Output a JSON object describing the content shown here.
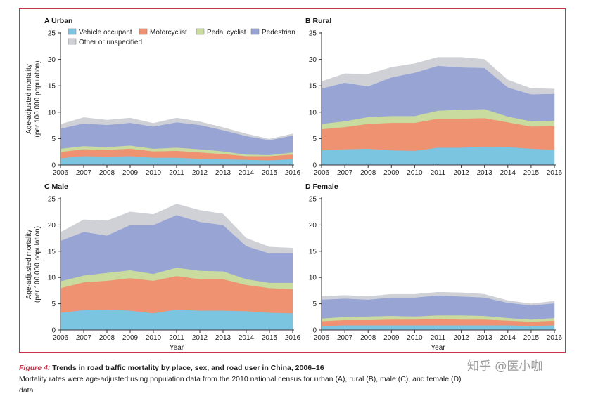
{
  "caption": {
    "figure_label": "Figure 4:",
    "title": " Trends in road traffic mortality by place, sex, and road user in China, 2006–16",
    "note": "Mortality rates were age-adjusted using population data from the 2010 national census for urban (A), rural (B), male (C), and female (D) data."
  },
  "watermark": "知乎 @医小咖",
  "colors": {
    "vehicle": "#7cc5e0",
    "motorcyclist": "#ee9272",
    "pedal": "#c9db9e",
    "pedestrian": "#98a5d4",
    "other": "#cfd1d7"
  },
  "chart_data": [
    {
      "type": "area",
      "stacked": true,
      "panel": "A",
      "title": "Urban",
      "xlabel": "",
      "ylabel_line1": "Age-adjusted mortality",
      "ylabel_line2": "(per 100 000 population)",
      "x": [
        2006,
        2007,
        2008,
        2009,
        2010,
        2011,
        2012,
        2013,
        2014,
        2015,
        2016
      ],
      "ylim": [
        0,
        25
      ],
      "yticks": [
        0,
        5,
        10,
        15,
        20,
        25
      ],
      "legend": {
        "row1": [
          "Vehicle occupant",
          "Motorcyclist",
          "Pedal cyclist",
          "Pedestrian"
        ],
        "row2": [
          "Other or unspecified"
        ]
      },
      "series": [
        {
          "name": "Vehicle occupant",
          "values": [
            1.3,
            1.7,
            1.6,
            1.7,
            1.4,
            1.4,
            1.2,
            1.1,
            1.0,
            0.9,
            1.1
          ]
        },
        {
          "name": "Motorcyclist",
          "values": [
            1.2,
            1.3,
            1.3,
            1.4,
            1.2,
            1.3,
            1.2,
            1.0,
            0.7,
            0.8,
            0.9
          ]
        },
        {
          "name": "Pedal cyclist",
          "values": [
            0.6,
            0.6,
            0.5,
            0.6,
            0.5,
            0.6,
            0.6,
            0.5,
            0.3,
            0.2,
            0.4
          ]
        },
        {
          "name": "Pedestrian",
          "values": [
            3.8,
            4.3,
            4.2,
            4.3,
            4.2,
            4.8,
            4.6,
            4.0,
            3.5,
            2.8,
            3.2
          ]
        },
        {
          "name": "Other or unspecified",
          "values": [
            0.8,
            1.1,
            0.9,
            0.9,
            0.6,
            0.8,
            0.6,
            0.5,
            0.4,
            0.2,
            0.3
          ]
        }
      ]
    },
    {
      "type": "area",
      "stacked": true,
      "panel": "B",
      "title": "Rural",
      "xlabel": "",
      "x": [
        2006,
        2007,
        2008,
        2009,
        2010,
        2011,
        2012,
        2013,
        2014,
        2015,
        2016
      ],
      "ylim": [
        0,
        25
      ],
      "yticks": [
        0,
        5,
        10,
        15,
        20,
        25
      ],
      "series": [
        {
          "name": "Vehicle occupant",
          "values": [
            2.8,
            3.0,
            3.1,
            2.8,
            2.7,
            3.3,
            3.3,
            3.5,
            3.4,
            3.1,
            2.9
          ]
        },
        {
          "name": "Motorcyclist",
          "values": [
            4.0,
            4.2,
            4.7,
            5.2,
            5.3,
            5.5,
            5.5,
            5.4,
            4.7,
            4.2,
            4.5
          ]
        },
        {
          "name": "Pedal cyclist",
          "values": [
            1.0,
            1.1,
            1.3,
            1.3,
            1.3,
            1.5,
            1.7,
            1.7,
            1.1,
            1.0,
            1.0
          ]
        },
        {
          "name": "Pedestrian",
          "values": [
            6.7,
            7.3,
            5.8,
            7.3,
            8.2,
            8.5,
            8.0,
            7.8,
            5.5,
            5.1,
            5.1
          ]
        },
        {
          "name": "Other or unspecified",
          "values": [
            1.3,
            1.7,
            2.3,
            1.9,
            1.7,
            1.6,
            1.9,
            1.6,
            1.4,
            1.1,
            0.9
          ]
        }
      ]
    },
    {
      "type": "area",
      "stacked": true,
      "panel": "C",
      "title": "Male",
      "xlabel": "Year",
      "ylabel_line1": "Age-adjusted mortality",
      "ylabel_line2": "(per 100 000 population)",
      "x": [
        2006,
        2007,
        2008,
        2009,
        2010,
        2011,
        2012,
        2013,
        2014,
        2015,
        2016
      ],
      "ylim": [
        0,
        25
      ],
      "yticks": [
        0,
        5,
        10,
        15,
        20,
        25
      ],
      "series": [
        {
          "name": "Vehicle occupant",
          "values": [
            3.3,
            3.8,
            3.9,
            3.7,
            3.2,
            3.9,
            3.7,
            3.7,
            3.6,
            3.3,
            3.2
          ]
        },
        {
          "name": "Motorcyclist",
          "values": [
            4.7,
            5.3,
            5.5,
            6.2,
            6.2,
            6.4,
            6.0,
            6.0,
            5.0,
            4.7,
            4.6
          ]
        },
        {
          "name": "Pedal cyclist",
          "values": [
            1.3,
            1.3,
            1.5,
            1.5,
            1.3,
            1.6,
            1.6,
            1.5,
            1.1,
            1.0,
            1.2
          ]
        },
        {
          "name": "Pedestrian",
          "values": [
            7.7,
            8.3,
            7.1,
            8.6,
            9.3,
            10.0,
            9.3,
            8.8,
            6.3,
            5.6,
            5.6
          ]
        },
        {
          "name": "Other or unspecified",
          "values": [
            1.6,
            2.3,
            2.8,
            2.5,
            2.0,
            2.1,
            2.2,
            2.1,
            1.5,
            1.2,
            1.0
          ]
        }
      ]
    },
    {
      "type": "area",
      "stacked": true,
      "panel": "D",
      "title": "Female",
      "xlabel": "Year",
      "x": [
        2006,
        2007,
        2008,
        2009,
        2010,
        2011,
        2012,
        2013,
        2014,
        2015,
        2016
      ],
      "ylim": [
        0,
        25
      ],
      "yticks": [
        0,
        5,
        10,
        15,
        20,
        25
      ],
      "series": [
        {
          "name": "Vehicle occupant",
          "values": [
            0.8,
            0.9,
            0.9,
            0.9,
            0.9,
            0.9,
            0.9,
            0.9,
            0.9,
            0.8,
            0.9
          ]
        },
        {
          "name": "Motorcyclist",
          "values": [
            0.9,
            1.0,
            1.0,
            1.1,
            1.1,
            1.2,
            1.1,
            1.1,
            0.9,
            0.8,
            0.9
          ]
        },
        {
          "name": "Pedal cyclist",
          "values": [
            0.5,
            0.6,
            0.7,
            0.7,
            0.6,
            0.7,
            0.8,
            0.7,
            0.5,
            0.4,
            0.5
          ]
        },
        {
          "name": "Pedestrian",
          "values": [
            3.6,
            3.5,
            3.2,
            3.5,
            3.6,
            3.8,
            3.6,
            3.5,
            2.9,
            2.7,
            2.8
          ]
        },
        {
          "name": "Other or unspecified",
          "values": [
            0.6,
            0.6,
            0.6,
            0.6,
            0.6,
            0.6,
            0.7,
            0.6,
            0.4,
            0.3,
            0.4
          ]
        }
      ]
    }
  ]
}
